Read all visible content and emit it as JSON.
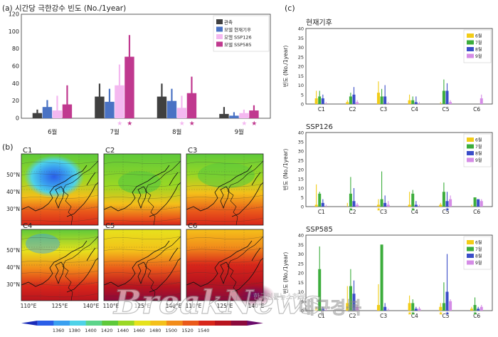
{
  "panel_labels": {
    "a": "(a) 시간당 극한강수 빈도 (No./1year)",
    "b": "(b)",
    "c": "(c)"
  },
  "colors": {
    "obs": "#404040",
    "hist": "#4a72c4",
    "ssp126": "#f4b8f0",
    "ssp585": "#c0398f",
    "m6": "#f2cc17",
    "m7": "#3cad3c",
    "m8": "#3a4dc8",
    "m9": "#d58ce6"
  },
  "chart_data": [
    {
      "type": "bar",
      "title": "(a) 시간당 극한강수 빈도 (No./1year)",
      "categories": [
        "6월",
        "7월",
        "8월",
        "9월"
      ],
      "ylim": [
        0,
        120
      ],
      "yticks": [
        0,
        20,
        40,
        60,
        80,
        100,
        120
      ],
      "legend_position": "top-right",
      "series": [
        {
          "name": "관측",
          "key": "obs",
          "values": [
            6,
            25,
            25,
            5
          ],
          "err_low": [
            3,
            15,
            16,
            1
          ],
          "err_high": [
            10,
            40,
            40,
            13
          ]
        },
        {
          "name": "모델 현재기후",
          "key": "hist",
          "values": [
            13,
            19,
            20,
            3
          ],
          "err_low": [
            8,
            9,
            10,
            0
          ],
          "err_high": [
            21,
            34,
            34,
            7
          ]
        },
        {
          "name": "모델 SSP126",
          "key": "ssp126",
          "values": [
            9,
            38,
            12,
            6
          ],
          "err_low": [
            3,
            16,
            4,
            2
          ],
          "err_high": [
            26,
            62,
            26,
            10
          ]
        },
        {
          "name": "모델 SSP585",
          "key": "ssp585",
          "values": [
            16,
            71,
            29,
            9
          ],
          "err_low": [
            7,
            50,
            16,
            3
          ],
          "err_high": [
            38,
            96,
            48,
            15
          ]
        }
      ],
      "significance": [
        {
          "category": "7월",
          "series": "ssp126"
        },
        {
          "category": "7월",
          "series": "ssp585"
        },
        {
          "category": "8월",
          "series": "ssp126"
        },
        {
          "category": "8월",
          "series": "ssp585"
        },
        {
          "category": "9월",
          "series": "ssp126"
        },
        {
          "category": "9월",
          "series": "ssp585"
        }
      ]
    },
    {
      "type": "bar",
      "title": "현재기후",
      "ylabel": "빈도 (No./1year)",
      "categories": [
        "C1",
        "C2",
        "C3",
        "C4",
        "C5",
        "C6"
      ],
      "ylim": [
        0,
        40
      ],
      "yticks": [
        0,
        5,
        10,
        15,
        20,
        25,
        30,
        35,
        40
      ],
      "legend_position": "top-right",
      "series": [
        {
          "name": "6월",
          "key": "m6",
          "values": [
            3,
            1,
            6,
            2,
            0,
            0
          ],
          "err_high": [
            7,
            2,
            12,
            5,
            1,
            0
          ]
        },
        {
          "name": "7월",
          "key": "m7",
          "values": [
            4,
            4,
            4,
            2,
            7,
            0
          ],
          "err_high": [
            7,
            6,
            8,
            4,
            13,
            0
          ]
        },
        {
          "name": "8월",
          "key": "m8",
          "values": [
            3,
            5,
            4,
            1,
            7,
            0
          ],
          "err_high": [
            5,
            9,
            10,
            4,
            11,
            0
          ]
        },
        {
          "name": "9월",
          "key": "m9",
          "values": [
            0,
            1,
            0,
            0,
            1,
            3
          ],
          "err_high": [
            1,
            2,
            1,
            1,
            2,
            5
          ]
        }
      ],
      "significance": []
    },
    {
      "type": "bar",
      "title": "SSP126",
      "ylabel": "빈도 (No./1year)",
      "categories": [
        "C1",
        "C2",
        "C3",
        "C4",
        "C5",
        "C6"
      ],
      "ylim": [
        0,
        40
      ],
      "yticks": [
        0,
        5,
        10,
        15,
        20,
        25,
        30,
        35,
        40
      ],
      "legend_position": "top-right",
      "series": [
        {
          "name": "6월",
          "key": "m6",
          "values": [
            1,
            0,
            1,
            1,
            1,
            0
          ],
          "err_high": [
            12,
            2,
            4,
            8,
            2,
            1
          ]
        },
        {
          "name": "7월",
          "key": "m7",
          "values": [
            7,
            7,
            4,
            7,
            8,
            5
          ],
          "err_high": [
            8,
            16,
            19,
            9,
            13,
            5
          ]
        },
        {
          "name": "8월",
          "key": "m8",
          "values": [
            2,
            3,
            2,
            1,
            3,
            4
          ],
          "err_high": [
            4,
            10,
            6,
            3,
            8,
            4
          ]
        },
        {
          "name": "9월",
          "key": "m9",
          "values": [
            0,
            1,
            1,
            0,
            4,
            3
          ],
          "err_high": [
            1,
            2,
            3,
            1,
            6,
            4
          ]
        }
      ],
      "significance": [
        {
          "category": "C2",
          "series": "m7"
        },
        {
          "category": "C3",
          "series": "m6"
        },
        {
          "category": "C4",
          "series": "m7"
        },
        {
          "category": "C5",
          "series": "m8"
        }
      ]
    },
    {
      "type": "bar",
      "title": "SSP585",
      "ylabel": "빈도 (No./1year)",
      "categories": [
        "C1",
        "C2",
        "C3",
        "C4",
        "C5",
        "C6"
      ],
      "ylim": [
        0,
        40
      ],
      "yticks": [
        0,
        5,
        10,
        15,
        20,
        25,
        30,
        35,
        40
      ],
      "legend_position": "top-right",
      "series": [
        {
          "name": "6월",
          "key": "m6",
          "values": [
            1,
            4,
            3,
            4,
            2,
            1
          ],
          "err_high": [
            2,
            13,
            14,
            8,
            4,
            2
          ]
        },
        {
          "name": "7월",
          "key": "m7",
          "values": [
            22,
            13,
            35,
            4,
            4,
            3
          ],
          "err_high": [
            34,
            22,
            35,
            6,
            15,
            7
          ]
        },
        {
          "name": "8월",
          "key": "m8",
          "values": [
            1,
            9,
            2,
            1,
            10,
            1
          ],
          "err_high": [
            2,
            16,
            4,
            2,
            30,
            2
          ]
        },
        {
          "name": "9월",
          "key": "m9",
          "values": [
            0,
            2,
            0,
            1,
            5,
            2
          ],
          "err_high": [
            1,
            3,
            1,
            2,
            6,
            3
          ]
        }
      ],
      "significance": [
        {
          "category": "C4",
          "series": "m6"
        },
        {
          "category": "C4",
          "series": "m7"
        },
        {
          "category": "C5",
          "series": "m6"
        },
        {
          "category": "C5",
          "series": "m8"
        },
        {
          "category": "C6",
          "series": "m7"
        }
      ]
    }
  ],
  "maps": {
    "panels": [
      "C1",
      "C2",
      "C3",
      "C4",
      "C5",
      "C6"
    ],
    "lat_labels": [
      "50°N",
      "40°N",
      "30°N"
    ],
    "lon_labels": [
      "110°E",
      "125°E",
      "140°E"
    ],
    "colorbar_ticks": [
      "1360",
      "1380",
      "1400",
      "1420",
      "1440",
      "1460",
      "1480",
      "1500",
      "1520",
      "1540"
    ],
    "colorbar_colors": [
      "#1a2bb8",
      "#2a5ee8",
      "#3aa0f0",
      "#4ed2e8",
      "#5cd48a",
      "#5ec93a",
      "#9ad824",
      "#e6e21c",
      "#f4c01a",
      "#f28c1a",
      "#ea5a1a",
      "#d8261a",
      "#b8141e",
      "#8c0a3c",
      "#6a0a6a"
    ]
  },
  "watermark": {
    "main": "BreakNews",
    "sub": "대구경북",
    "small": "한국언론뉴스허브"
  }
}
